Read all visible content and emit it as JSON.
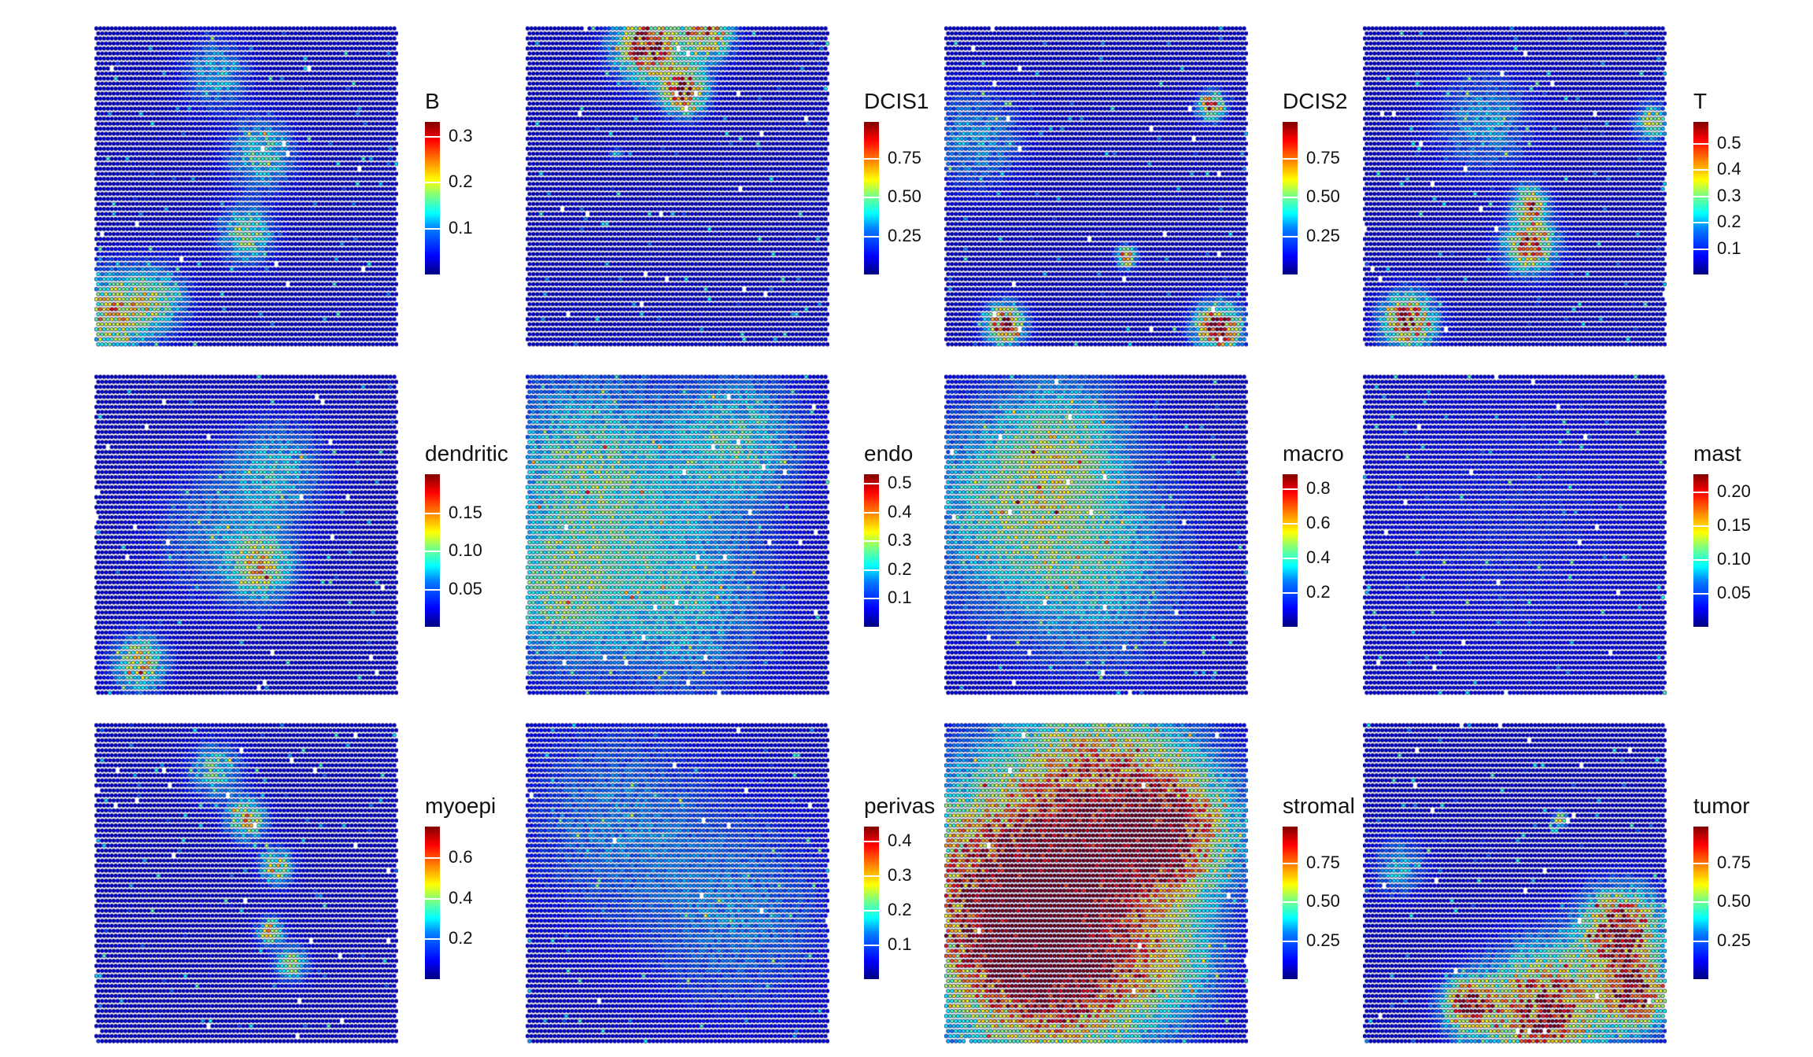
{
  "chart_data": [
    {
      "type": "heatmap",
      "title": "B",
      "range": [
        0,
        0.33
      ],
      "ticks": [
        "0.1",
        "0.2",
        "0.3"
      ],
      "tick_values": [
        0.1,
        0.2,
        0.3
      ]
    },
    {
      "type": "heatmap",
      "title": "DCIS1",
      "range": [
        0,
        0.98
      ],
      "ticks": [
        "0.25",
        "0.50",
        "0.75"
      ],
      "tick_values": [
        0.25,
        0.5,
        0.75
      ]
    },
    {
      "type": "heatmap",
      "title": "DCIS2",
      "range": [
        0,
        0.98
      ],
      "ticks": [
        "0.25",
        "0.50",
        "0.75"
      ],
      "tick_values": [
        0.25,
        0.5,
        0.75
      ]
    },
    {
      "type": "heatmap",
      "title": "T",
      "range": [
        0,
        0.58
      ],
      "ticks": [
        "0.1",
        "0.2",
        "0.3",
        "0.4",
        "0.5"
      ],
      "tick_values": [
        0.1,
        0.2,
        0.3,
        0.4,
        0.5
      ]
    },
    {
      "type": "heatmap",
      "title": "dendritic",
      "range": [
        0,
        0.2
      ],
      "ticks": [
        "0.05",
        "0.10",
        "0.15"
      ],
      "tick_values": [
        0.05,
        0.1,
        0.15
      ]
    },
    {
      "type": "heatmap",
      "title": "endo",
      "range": [
        0,
        0.53
      ],
      "ticks": [
        "0.1",
        "0.2",
        "0.3",
        "0.4",
        "0.5"
      ],
      "tick_values": [
        0.1,
        0.2,
        0.3,
        0.4,
        0.5
      ]
    },
    {
      "type": "heatmap",
      "title": "macro",
      "range": [
        0,
        0.88
      ],
      "ticks": [
        "0.2",
        "0.4",
        "0.6",
        "0.8"
      ],
      "tick_values": [
        0.2,
        0.4,
        0.6,
        0.8
      ]
    },
    {
      "type": "heatmap",
      "title": "mast",
      "range": [
        0,
        0.225
      ],
      "ticks": [
        "0.05",
        "0.10",
        "0.15",
        "0.20"
      ],
      "tick_values": [
        0.05,
        0.1,
        0.15,
        0.2
      ]
    },
    {
      "type": "heatmap",
      "title": "myoepi",
      "range": [
        0,
        0.75
      ],
      "ticks": [
        "0.2",
        "0.4",
        "0.6"
      ],
      "tick_values": [
        0.2,
        0.4,
        0.6
      ]
    },
    {
      "type": "heatmap",
      "title": "perivas",
      "range": [
        0,
        0.44
      ],
      "ticks": [
        "0.1",
        "0.2",
        "0.3",
        "0.4"
      ],
      "tick_values": [
        0.1,
        0.2,
        0.3,
        0.4
      ]
    },
    {
      "type": "heatmap",
      "title": "stromal",
      "range": [
        0,
        0.98
      ],
      "ticks": [
        "0.25",
        "0.50",
        "0.75"
      ],
      "tick_values": [
        0.25,
        0.5,
        0.75
      ]
    },
    {
      "type": "heatmap",
      "title": "tumor",
      "range": [
        0,
        0.98
      ],
      "ticks": [
        "0.25",
        "0.50",
        "0.75"
      ],
      "tick_values": [
        0.25,
        0.5,
        0.75
      ]
    }
  ]
}
